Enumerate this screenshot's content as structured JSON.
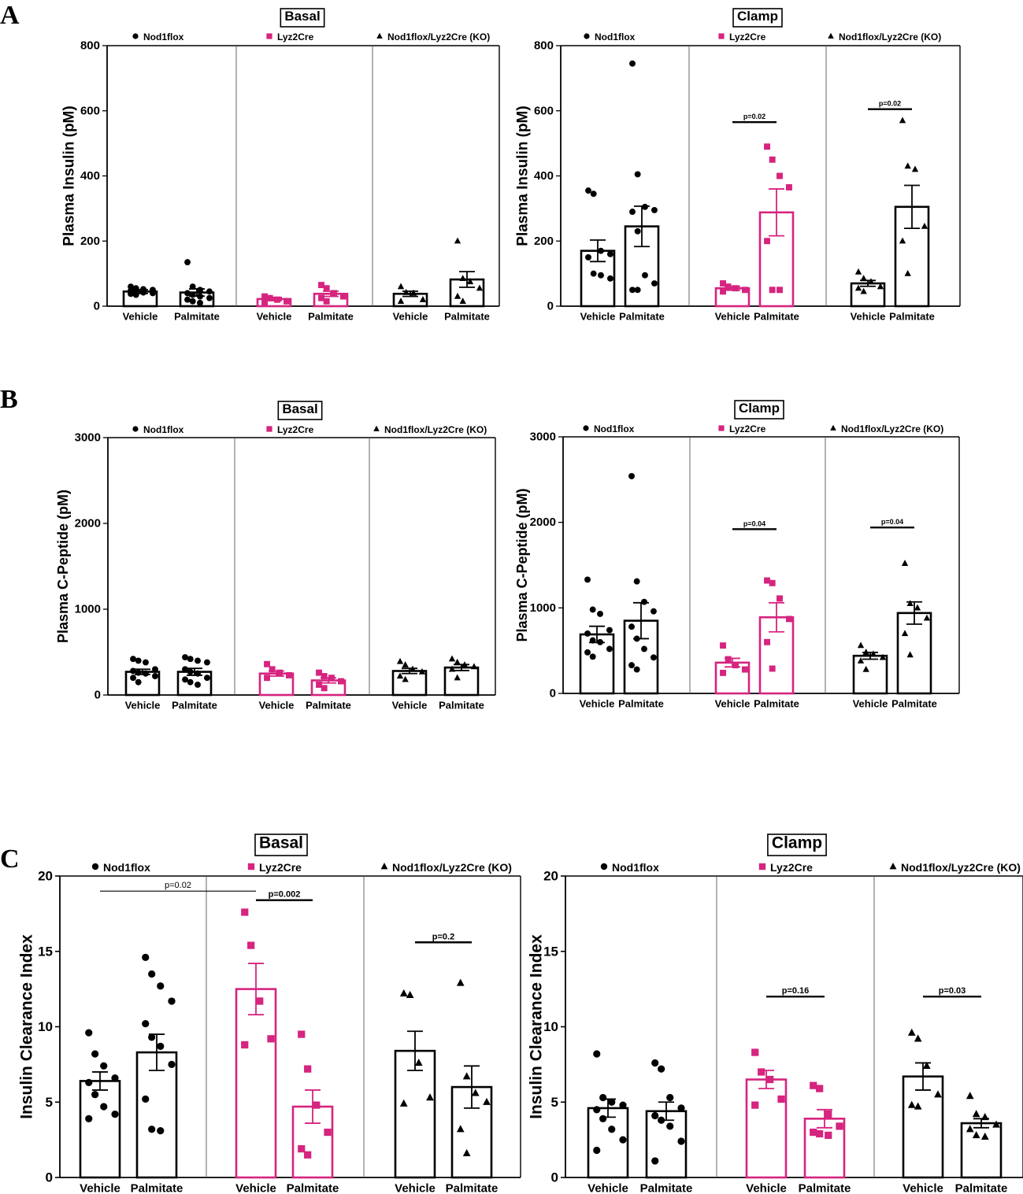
{
  "panel_letters": [
    "A",
    "B",
    "C"
  ],
  "colors": {
    "black": "#000000",
    "pink": "#d6247f"
  },
  "groups": [
    {
      "name": "Nod1flox",
      "marker": "circle",
      "color": "#000000"
    },
    {
      "name": "Lyz2Cre",
      "marker": "square",
      "color": "#d6247f"
    },
    {
      "name": "Nod1flox/Lyz2Cre (KO)",
      "marker": "triangle",
      "color": "#000000"
    }
  ],
  "chart_data": [
    {
      "id": "A-basal",
      "panel": "A",
      "type": "bar",
      "title": "Basal",
      "ylabel": "Plasma Insulin (pM)",
      "ylim": [
        0,
        800
      ],
      "yticks": [
        0,
        200,
        400,
        600,
        800
      ],
      "categories": [
        "Vehicle",
        "Palmitate"
      ],
      "series": [
        {
          "group": 0,
          "bars": [
            {
              "label": "Vehicle",
              "mean": 45,
              "sem": 6,
              "points": [
                60,
                55,
                52,
                50,
                48,
                45,
                42,
                40,
                38,
                35
              ]
            },
            {
              "label": "Palmitate",
              "mean": 42,
              "sem": 11,
              "points": [
                135,
                60,
                50,
                45,
                40,
                35,
                30,
                25,
                20,
                15,
                10
              ]
            }
          ]
        },
        {
          "group": 1,
          "bars": [
            {
              "label": "Vehicle",
              "mean": 22,
              "sem": 5,
              "points": [
                30,
                25,
                20,
                15,
                12
              ]
            },
            {
              "label": "Palmitate",
              "mean": 38,
              "sem": 8,
              "points": [
                65,
                55,
                40,
                30,
                25,
                15
              ]
            }
          ]
        },
        {
          "group": 2,
          "bars": [
            {
              "label": "Vehicle",
              "mean": 38,
              "sem": 8,
              "points": [
                60,
                42,
                40,
                20,
                15
              ]
            },
            {
              "label": "Palmitate",
              "mean": 82,
              "sem": 24,
              "points": [
                200,
                85,
                75,
                55,
                30,
                15
              ]
            }
          ]
        }
      ],
      "annotations": []
    },
    {
      "id": "A-clamp",
      "panel": "A",
      "type": "bar",
      "title": "Clamp",
      "ylabel": "Plasma Insulin (pM)",
      "ylim": [
        0,
        800
      ],
      "yticks": [
        0,
        200,
        400,
        600,
        800
      ],
      "categories": [
        "Vehicle",
        "Palmitate"
      ],
      "series": [
        {
          "group": 0,
          "bars": [
            {
              "label": "Vehicle",
              "mean": 170,
              "sem": 33,
              "points": [
                355,
                345,
                170,
                160,
                150,
                100,
                95,
                85
              ]
            },
            {
              "label": "Palmitate",
              "mean": 245,
              "sem": 62,
              "points": [
                745,
                405,
                305,
                295,
                290,
                230,
                95,
                70,
                50,
                50
              ]
            }
          ]
        },
        {
          "group": 1,
          "bars": [
            {
              "label": "Vehicle",
              "mean": 55,
              "sem": 6,
              "points": [
                70,
                60,
                55,
                50,
                45
              ]
            },
            {
              "label": "Palmitate",
              "mean": 288,
              "sem": 72,
              "points": [
                490,
                450,
                400,
                365,
                200,
                50,
                50
              ]
            }
          ]
        },
        {
          "group": 2,
          "bars": [
            {
              "label": "Vehicle",
              "mean": 70,
              "sem": 9,
              "points": [
                105,
                85,
                75,
                60,
                55,
                45
              ]
            },
            {
              "label": "Palmitate",
              "mean": 305,
              "sem": 66,
              "points": [
                570,
                430,
                420,
                245,
                200,
                100
              ]
            }
          ]
        }
      ],
      "annotations": [
        {
          "text": "p=0.02",
          "group": 1,
          "y": 565
        },
        {
          "text": "p=0.02",
          "group": 2,
          "y": 605
        }
      ]
    },
    {
      "id": "B-basal",
      "panel": "B",
      "type": "bar",
      "title": "Basal",
      "ylabel": "Plasma C-Peptide (pM)",
      "ylim": [
        0,
        3000
      ],
      "yticks": [
        0,
        1000,
        2000,
        3000
      ],
      "categories": [
        "Vehicle",
        "Palmitate"
      ],
      "series": [
        {
          "group": 0,
          "bars": [
            {
              "label": "Vehicle",
              "mean": 270,
              "sem": 30,
              "points": [
                420,
                400,
                380,
                300,
                280,
                260,
                250,
                220,
                200,
                150
              ]
            },
            {
              "label": "Palmitate",
              "mean": 270,
              "sem": 40,
              "points": [
                440,
                420,
                400,
                380,
                300,
                270,
                250,
                200,
                180,
                150,
                120
              ]
            }
          ]
        },
        {
          "group": 1,
          "bars": [
            {
              "label": "Vehicle",
              "mean": 250,
              "sem": 30,
              "points": [
                360,
                300,
                260,
                230,
                200
              ]
            },
            {
              "label": "Palmitate",
              "mean": 170,
              "sem": 30,
              "points": [
                260,
                220,
                200,
                160,
                120,
                80
              ]
            }
          ]
        },
        {
          "group": 2,
          "bars": [
            {
              "label": "Vehicle",
              "mean": 280,
              "sem": 30,
              "points": [
                390,
                350,
                300,
                270,
                220,
                180
              ]
            },
            {
              "label": "Palmitate",
              "mean": 320,
              "sem": 35,
              "points": [
                420,
                380,
                350,
                330,
                300,
                200
              ]
            }
          ]
        }
      ],
      "annotations": []
    },
    {
      "id": "B-clamp",
      "panel": "B",
      "type": "bar",
      "title": "Clamp",
      "ylabel": "Plasma C-Peptide (pM)",
      "ylim": [
        0,
        3000
      ],
      "yticks": [
        0,
        1000,
        2000,
        3000
      ],
      "categories": [
        "Vehicle",
        "Palmitate"
      ],
      "series": [
        {
          "group": 0,
          "bars": [
            {
              "label": "Vehicle",
              "mean": 690,
              "sem": 95,
              "points": [
                1330,
                980,
                930,
                740,
                700,
                620,
                600,
                520,
                480,
                430
              ]
            },
            {
              "label": "Palmitate",
              "mean": 850,
              "sem": 210,
              "points": [
                2540,
                1310,
                1070,
                960,
                780,
                640,
                520,
                420,
                330,
                280
              ]
            }
          ]
        },
        {
          "group": 1,
          "bars": [
            {
              "label": "Vehicle",
              "mean": 360,
              "sem": 50,
              "points": [
                560,
                400,
                330,
                280,
                240
              ]
            },
            {
              "label": "Palmitate",
              "mean": 890,
              "sem": 170,
              "points": [
                1320,
                1290,
                1110,
                870,
                600,
                290
              ]
            }
          ]
        },
        {
          "group": 2,
          "bars": [
            {
              "label": "Vehicle",
              "mean": 440,
              "sem": 40,
              "points": [
                560,
                480,
                460,
                420,
                380,
                280
              ]
            },
            {
              "label": "Palmitate",
              "mean": 940,
              "sem": 130,
              "points": [
                1520,
                1050,
                1000,
                880,
                700,
                450
              ]
            }
          ]
        }
      ],
      "annotations": [
        {
          "text": "p=0.04",
          "group": 1,
          "y": 1920
        },
        {
          "text": "p=0.04",
          "group": 2,
          "y": 1940
        }
      ]
    },
    {
      "id": "C-basal",
      "panel": "C",
      "type": "bar",
      "title": "Basal",
      "ylabel": "Insulin Clearance Index",
      "ylim": [
        0,
        20
      ],
      "yticks": [
        0,
        5,
        10,
        15,
        20
      ],
      "categories": [
        "Vehicle",
        "Palmitate"
      ],
      "series": [
        {
          "group": 0,
          "bars": [
            {
              "label": "Vehicle",
              "mean": 6.4,
              "sem": 0.6,
              "points": [
                9.6,
                8.2,
                7.4,
                6.6,
                6.3,
                5.5,
                4.7,
                4.2,
                3.9
              ]
            },
            {
              "label": "Palmitate",
              "mean": 8.3,
              "sem": 1.2,
              "points": [
                14.6,
                13.5,
                12.7,
                11.7,
                10.2,
                9.3,
                8.7,
                7.5,
                5.2,
                3.2,
                3.1
              ]
            }
          ]
        },
        {
          "group": 1,
          "bars": [
            {
              "label": "Vehicle",
              "mean": 12.5,
              "sem": 1.7,
              "points": [
                17.6,
                15.4,
                11.7,
                9.2,
                8.8
              ]
            },
            {
              "label": "Palmitate",
              "mean": 4.7,
              "sem": 1.1,
              "points": [
                9.5,
                7.2,
                4.8,
                3.0,
                1.9,
                1.5
              ]
            }
          ]
        },
        {
          "group": 2,
          "bars": [
            {
              "label": "Vehicle",
              "mean": 8.4,
              "sem": 1.3,
              "points": [
                12.2,
                12.1,
                7.6,
                5.3,
                4.9
              ]
            },
            {
              "label": "Palmitate",
              "mean": 6.0,
              "sem": 1.4,
              "points": [
                12.9,
                6.7,
                5.6,
                5.0,
                3.2,
                1.6
              ]
            }
          ]
        }
      ],
      "annotations": [
        {
          "text": "p=0.02",
          "from_group": 0,
          "to_group": 1,
          "y": 19.0,
          "thin": true
        },
        {
          "text": "p=0.002",
          "group": 1,
          "y": 18.4
        },
        {
          "text": "p=0.2",
          "group": 2,
          "y": 15.6
        }
      ]
    },
    {
      "id": "C-clamp",
      "panel": "C",
      "type": "bar",
      "title": "Clamp",
      "ylabel": "Insulin Clearance Index",
      "ylim": [
        0,
        20
      ],
      "yticks": [
        0,
        5,
        10,
        15,
        20
      ],
      "categories": [
        "Vehicle",
        "Palmitate"
      ],
      "series": [
        {
          "group": 0,
          "bars": [
            {
              "label": "Vehicle",
              "mean": 4.6,
              "sem": 0.6,
              "points": [
                8.2,
                5.3,
                5.0,
                4.8,
                4.5,
                3.9,
                3.2,
                2.5,
                1.8
              ]
            },
            {
              "label": "Palmitate",
              "mean": 4.4,
              "sem": 0.6,
              "points": [
                7.6,
                7.2,
                5.3,
                4.6,
                4.1,
                3.8,
                3.4,
                2.4,
                1.1
              ]
            }
          ]
        },
        {
          "group": 1,
          "bars": [
            {
              "label": "Vehicle",
              "mean": 6.5,
              "sem": 0.6,
              "points": [
                8.3,
                7.0,
                6.5,
                5.2,
                4.8
              ]
            },
            {
              "label": "Palmitate",
              "mean": 3.9,
              "sem": 0.6,
              "points": [
                6.1,
                5.9,
                4.2,
                3.4,
                3.0,
                2.9,
                2.8
              ]
            }
          ]
        },
        {
          "group": 2,
          "bars": [
            {
              "label": "Vehicle",
              "mean": 6.7,
              "sem": 0.9,
              "points": [
                9.6,
                9.2,
                7.4,
                5.5,
                4.8,
                4.7
              ]
            },
            {
              "label": "Palmitate",
              "mean": 3.6,
              "sem": 0.3,
              "points": [
                5.4,
                4.2,
                4.0,
                3.5,
                3.2,
                2.8,
                2.7
              ]
            }
          ]
        }
      ],
      "annotations": [
        {
          "text": "p=0.16",
          "group": 1,
          "y": 12.0
        },
        {
          "text": "p=0.03",
          "group": 2,
          "y": 12.0
        }
      ]
    }
  ]
}
